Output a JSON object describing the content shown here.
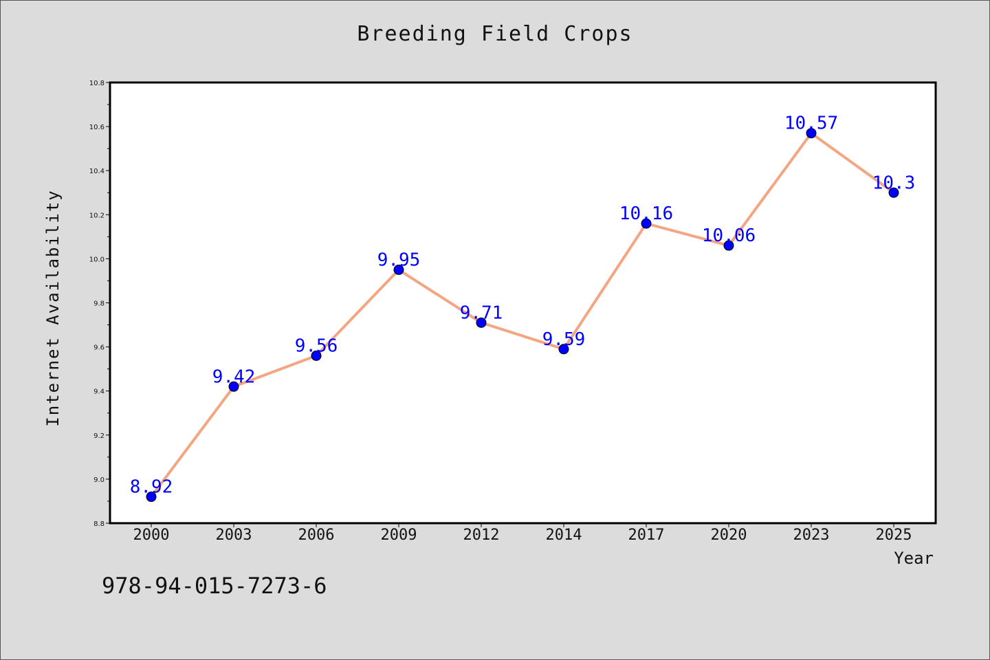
{
  "chart_data": {
    "type": "line",
    "title": "Breeding Field Crops",
    "xlabel": "Year",
    "ylabel": "Internet Availability",
    "categories": [
      "2000",
      "2003",
      "2006",
      "2009",
      "2012",
      "2014",
      "2017",
      "2020",
      "2023",
      "2025"
    ],
    "series": [
      {
        "values": [
          8.92,
          9.42,
          9.56,
          9.95,
          9.71,
          9.59,
          10.16,
          10.06,
          10.57,
          10.3
        ],
        "data_labels": [
          "8.92",
          "9.42",
          "9.56",
          "9.95",
          "9.71",
          "9.59",
          "10.16",
          "10.06",
          "10.57",
          "10.3"
        ]
      }
    ],
    "ylim": [
      8.8,
      10.8
    ],
    "yticks": [
      "8.8",
      "9.0",
      "9.2",
      "9.4",
      "9.6",
      "9.8",
      "10.0",
      "10.2",
      "10.4",
      "10.6",
      "10.8"
    ],
    "grid": false,
    "colors": {
      "line": "#f4a582",
      "marker": "#0000ff",
      "label": "#0000ff"
    }
  },
  "footer": {
    "isbn": "978-94-015-7273-6"
  }
}
